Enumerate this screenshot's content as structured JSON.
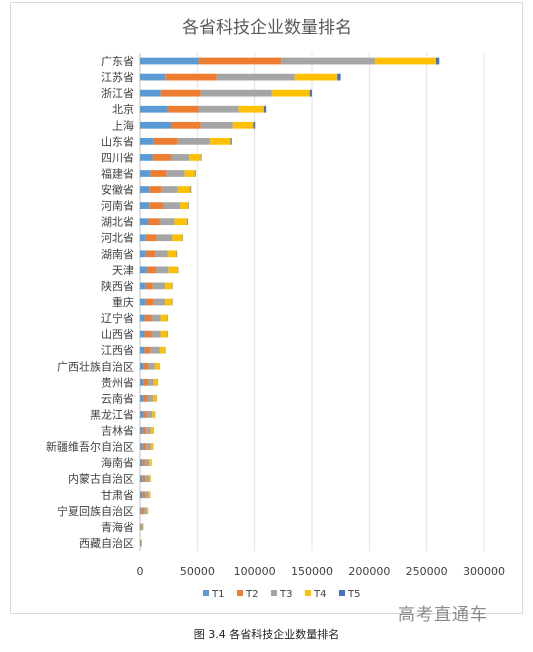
{
  "caption": "图 3.4 各省科技企业数量排名",
  "watermark": "高考直通车",
  "colors": {
    "T1": "#5b9bd5",
    "T2": "#ed7d31",
    "T3": "#a5a5a5",
    "T4": "#ffc000",
    "T5": "#4472c4"
  },
  "chart_data": {
    "type": "bar",
    "orientation": "horizontal",
    "stacked": true,
    "title": "各省科技企业数量排名",
    "xlabel": "",
    "ylabel": "",
    "xlim": [
      0,
      300000
    ],
    "xticks": [
      0,
      50000,
      100000,
      150000,
      200000,
      250000,
      300000
    ],
    "grid": "vertical",
    "legend_position": "bottom",
    "categories": [
      "广东省",
      "江苏省",
      "浙江省",
      "北京",
      "上海",
      "山东省",
      "四川省",
      "福建省",
      "安徽省",
      "河南省",
      "湖北省",
      "河北省",
      "湖南省",
      "天津",
      "陕西省",
      "重庆",
      "辽宁省",
      "山西省",
      "江西省",
      "广西壮族自治区",
      "贵州省",
      "云南省",
      "黑龙江省",
      "吉林省",
      "新疆维吾尔自治区",
      "海南省",
      "内蒙古自治区",
      "甘肃省",
      "宁夏回族自治区",
      "青海省",
      "西藏自治区"
    ],
    "series": [
      {
        "name": "T1",
        "values": [
          51000,
          22000,
          18000,
          24000,
          27000,
          12000,
          11000,
          9000,
          8000,
          8000,
          7000,
          5000,
          5000,
          6000,
          5000,
          5000,
          4000,
          4000,
          4000,
          3000,
          3000,
          3000,
          3000,
          2500,
          2500,
          2000,
          2000,
          2000,
          1500,
          800,
          400
        ]
      },
      {
        "name": "T2",
        "values": [
          72000,
          45000,
          35000,
          27000,
          26000,
          21000,
          16000,
          14000,
          11000,
          12000,
          10000,
          9000,
          8000,
          8000,
          6000,
          7000,
          6000,
          6000,
          5000,
          4000,
          4000,
          3500,
          3000,
          3000,
          3000,
          2500,
          2500,
          2500,
          2000,
          700,
          400
        ]
      },
      {
        "name": "T3",
        "values": [
          82000,
          68000,
          62000,
          35000,
          28000,
          28000,
          16000,
          16000,
          14000,
          15000,
          13000,
          14000,
          11000,
          11000,
          11000,
          10000,
          8000,
          8000,
          8000,
          6000,
          5000,
          5000,
          4500,
          4000,
          4000,
          3500,
          3500,
          3000,
          2500,
          1000,
          600
        ]
      },
      {
        "name": "T4",
        "values": [
          53000,
          37000,
          33000,
          22000,
          18000,
          18000,
          10000,
          9000,
          11000,
          7000,
          11000,
          9000,
          8000,
          8000,
          6000,
          6000,
          6000,
          6000,
          5000,
          4000,
          3500,
          3000,
          2500,
          2500,
          2000,
          2000,
          1500,
          1500,
          1000,
          500,
          300
        ]
      },
      {
        "name": "T5",
        "values": [
          3000,
          3000,
          2000,
          2000,
          1500,
          1000,
          600,
          600,
          600,
          500,
          600,
          400,
          400,
          400,
          400,
          400,
          300,
          300,
          300,
          200,
          200,
          200,
          200,
          150,
          150,
          150,
          100,
          100,
          100,
          50,
          50
        ]
      }
    ]
  }
}
